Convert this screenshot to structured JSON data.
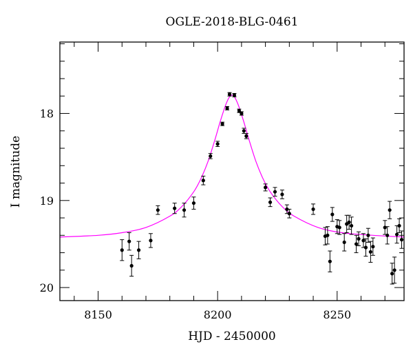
{
  "chart_data": {
    "type": "scatter",
    "title": "OGLE-2018-BLG-0461",
    "xlabel": "HJD - 2450000",
    "ylabel": "I magnitude",
    "xlim": [
      8134,
      8278
    ],
    "ylim": [
      20.15,
      17.18
    ],
    "y_inverted": true,
    "xticks": [
      8150,
      8200,
      8250
    ],
    "yticks": [
      18,
      19,
      20
    ],
    "xtick_labels": [
      "8150",
      "8200",
      "8250"
    ],
    "ytick_labels": [
      "18",
      "19",
      "20"
    ],
    "grid": false,
    "colors": {
      "data": "#000000",
      "model": "#ff00ff"
    },
    "model": {
      "name": "",
      "type": "point-lens fit",
      "t0": 8206.0,
      "baseline_mag": 19.43,
      "peak_mag": 17.79,
      "x": [
        8134,
        8150,
        8160,
        8170,
        8180,
        8185,
        8190,
        8193,
        8196,
        8199,
        8201,
        8203,
        8204,
        8205,
        8206,
        8207,
        8208,
        8209,
        8211,
        8213,
        8216,
        8219,
        8222,
        8227,
        8232,
        8242,
        8252,
        8265,
        8278
      ],
      "y": [
        19.42,
        19.4,
        19.37,
        19.31,
        19.18,
        19.07,
        18.9,
        18.75,
        18.55,
        18.29,
        18.1,
        17.93,
        17.86,
        17.81,
        17.79,
        17.81,
        17.86,
        17.93,
        18.1,
        18.29,
        18.55,
        18.75,
        18.9,
        19.07,
        19.18,
        19.31,
        19.37,
        19.4,
        19.42
      ]
    },
    "series": [
      {
        "x": [
          8160,
          8163,
          8164,
          8167,
          8172,
          8175,
          8182,
          8186,
          8190,
          8194,
          8197,
          8200,
          8202,
          8204,
          8205,
          8207,
          8209,
          8210,
          8211,
          8212,
          8220,
          8222,
          8224,
          8227,
          8229,
          8230,
          8240,
          8245,
          8246,
          8247,
          8248,
          8250,
          8251,
          8253,
          8254,
          8255,
          8256,
          8258,
          8259,
          8261,
          8262,
          8263,
          8264,
          8265,
          8270,
          8271,
          8272,
          8273,
          8274,
          8275,
          8276,
          8277
        ],
        "y": [
          19.57,
          19.47,
          19.75,
          19.57,
          19.46,
          19.11,
          19.09,
          19.11,
          19.03,
          18.77,
          18.49,
          18.35,
          18.12,
          17.94,
          17.78,
          17.79,
          17.97,
          18.0,
          18.2,
          18.26,
          18.85,
          19.02,
          18.9,
          18.93,
          19.1,
          19.15,
          19.1,
          19.41,
          19.4,
          19.7,
          19.16,
          19.3,
          19.31,
          19.48,
          19.27,
          19.25,
          19.29,
          19.5,
          19.44,
          19.46,
          19.54,
          19.4,
          19.59,
          19.53,
          19.31,
          19.4,
          19.11,
          19.84,
          19.8,
          19.39,
          19.29,
          19.45
        ],
        "err": [
          0.12,
          0.1,
          0.12,
          0.1,
          0.08,
          0.05,
          0.06,
          0.08,
          0.07,
          0.05,
          0.03,
          0.03,
          0.02,
          0.02,
          0.02,
          0.02,
          0.02,
          0.02,
          0.03,
          0.03,
          0.04,
          0.05,
          0.05,
          0.05,
          0.05,
          0.05,
          0.06,
          0.1,
          0.1,
          0.12,
          0.08,
          0.08,
          0.08,
          0.1,
          0.1,
          0.08,
          0.1,
          0.1,
          0.08,
          0.08,
          0.1,
          0.08,
          0.12,
          0.1,
          0.08,
          0.1,
          0.1,
          0.12,
          0.15,
          0.1,
          0.08,
          0.1
        ]
      }
    ]
  }
}
